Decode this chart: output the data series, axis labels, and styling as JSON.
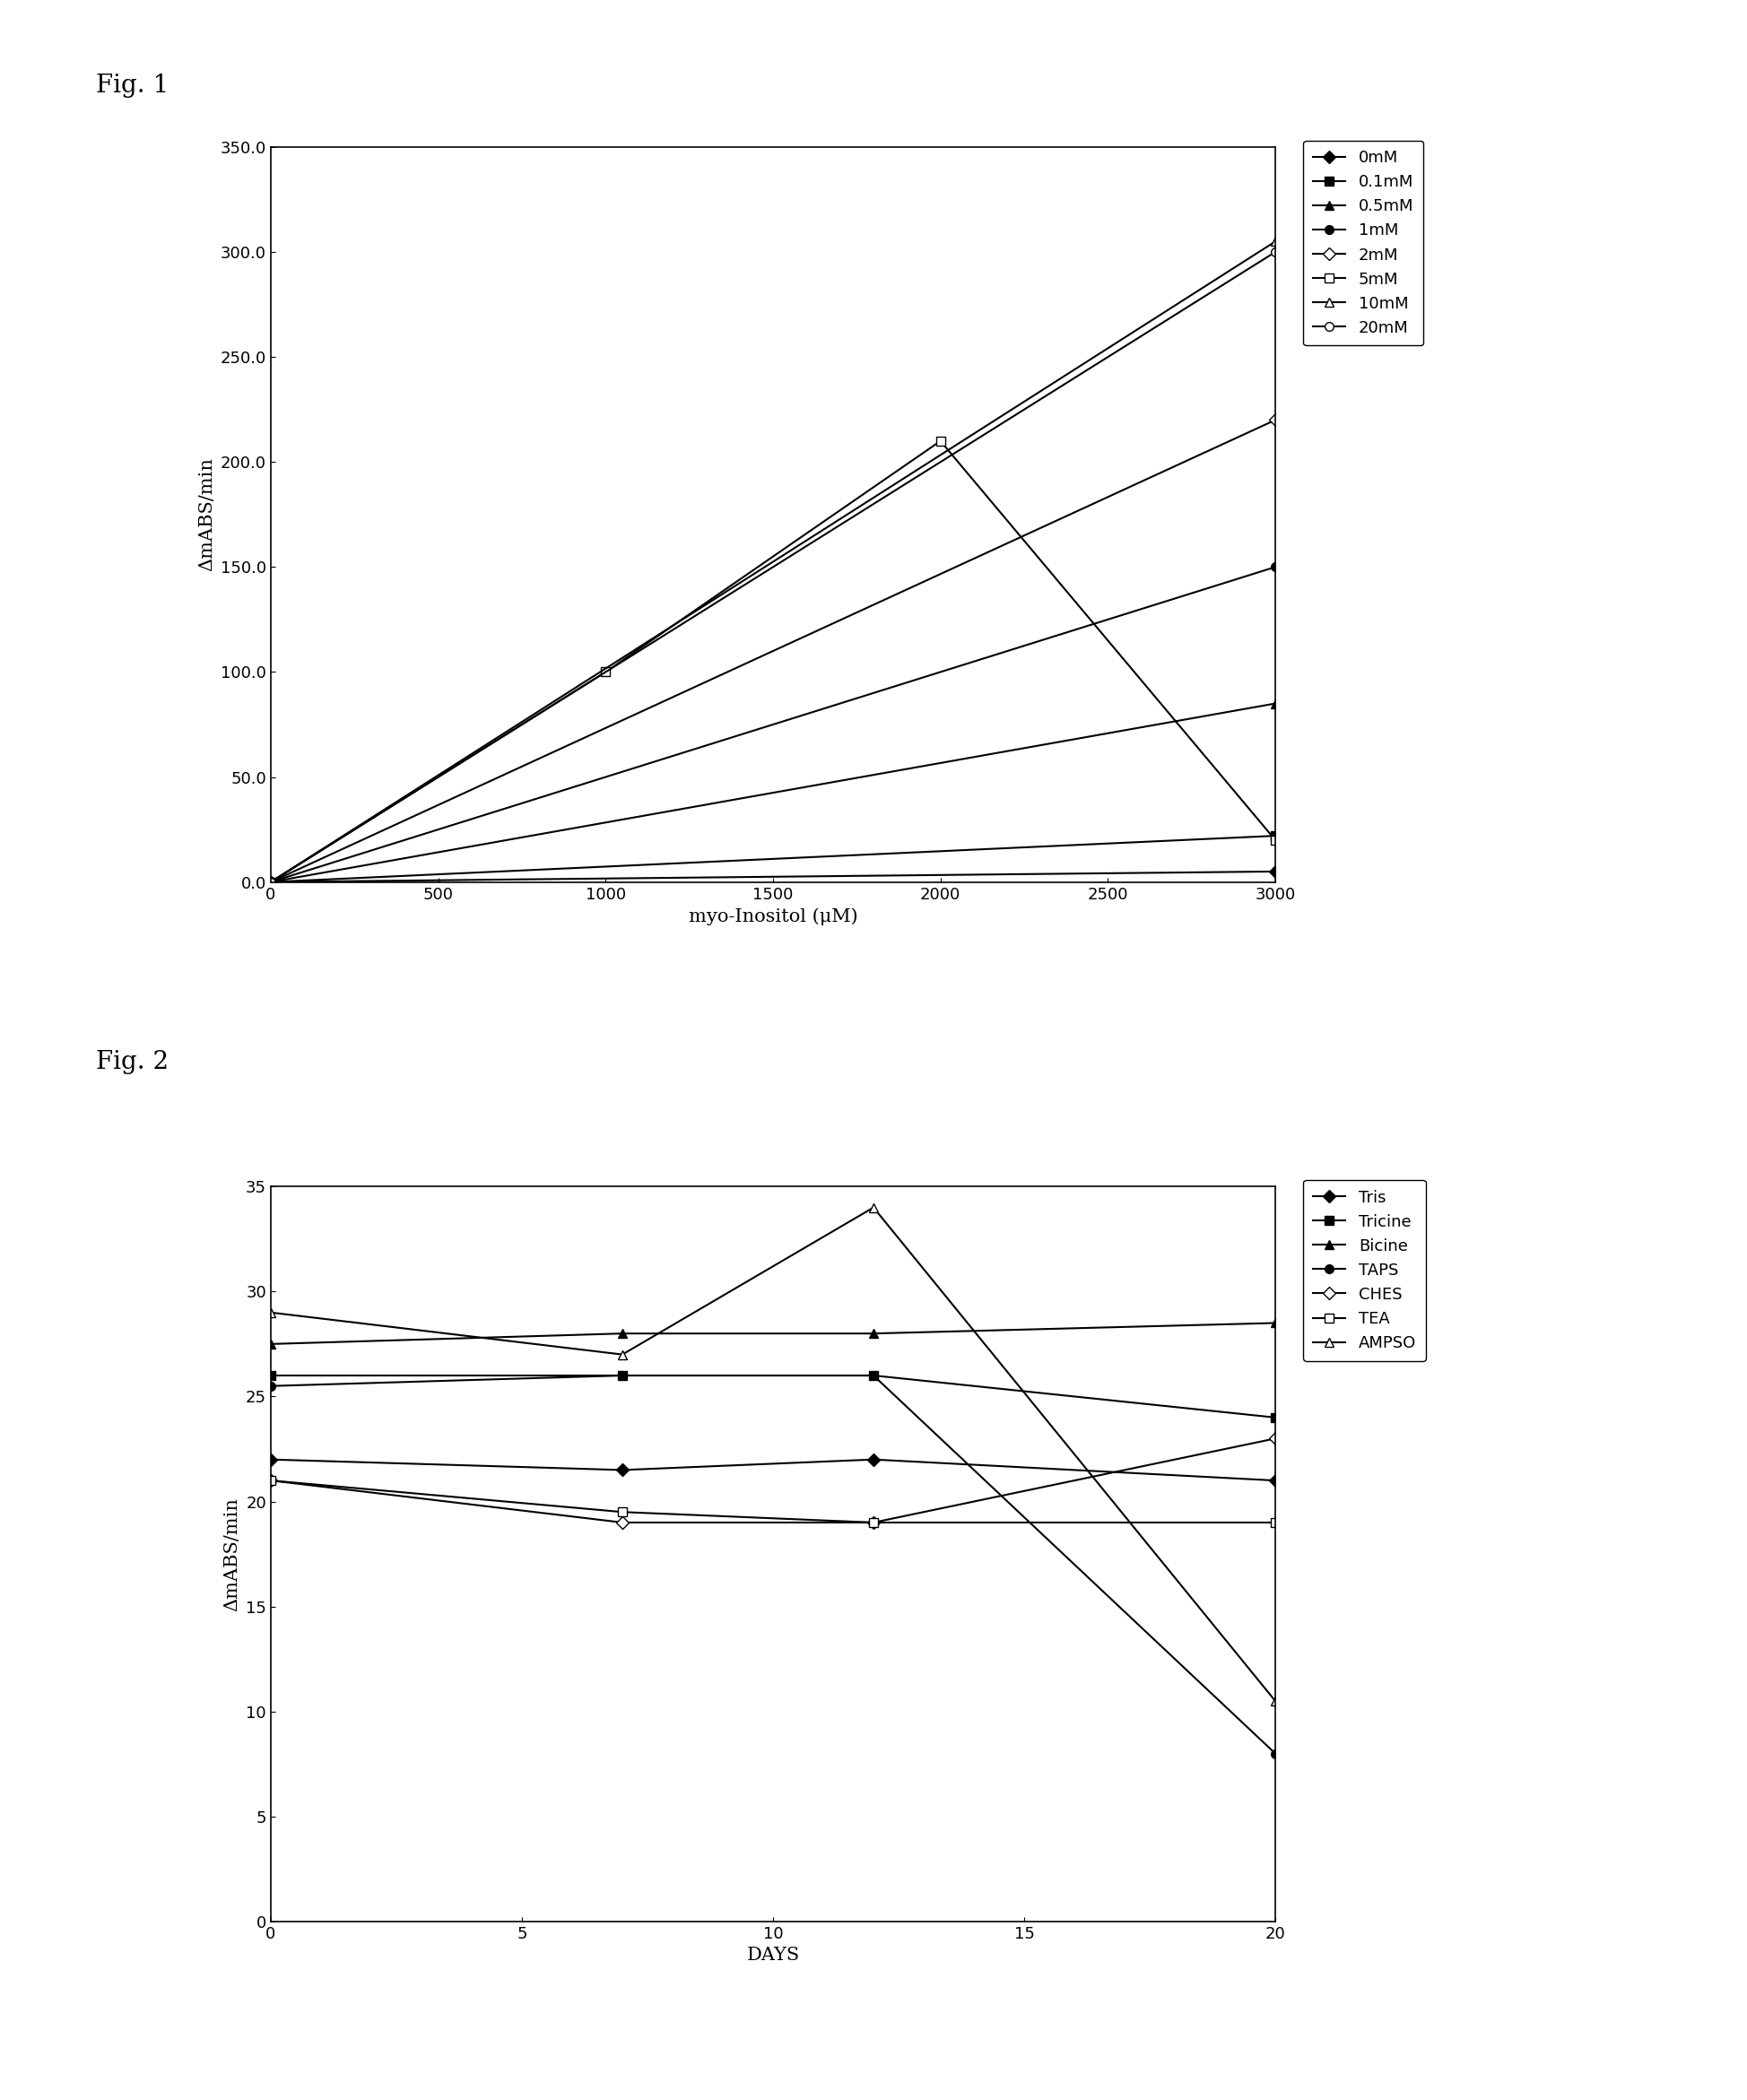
{
  "fig1": {
    "title": "Fig. 1",
    "xlabel": "myo-Inositol (μM)",
    "ylabel": "ΔmABS/min",
    "xlim": [
      0,
      3000
    ],
    "ylim": [
      0.0,
      350.0
    ],
    "yticks": [
      0.0,
      50.0,
      100.0,
      150.0,
      200.0,
      250.0,
      300.0,
      350.0
    ],
    "xticks": [
      0,
      500,
      1000,
      1500,
      2000,
      2500,
      3000
    ],
    "series": [
      {
        "label": "0mM",
        "x": [
          0,
          3000
        ],
        "y": [
          0,
          5
        ],
        "marker": "D",
        "filled": true
      },
      {
        "label": "0.1mM",
        "x": [
          0,
          3000
        ],
        "y": [
          0,
          22
        ],
        "marker": "s",
        "filled": true
      },
      {
        "label": "0.5mM",
        "x": [
          0,
          3000
        ],
        "y": [
          0,
          85
        ],
        "marker": "^",
        "filled": true
      },
      {
        "label": "1mM",
        "x": [
          0,
          3000
        ],
        "y": [
          0,
          150
        ],
        "marker": "o",
        "filled": true
      },
      {
        "label": "2mM",
        "x": [
          0,
          3000
        ],
        "y": [
          0,
          220
        ],
        "marker": "D",
        "filled": false
      },
      {
        "label": "5mM",
        "x": [
          0,
          1000,
          2000,
          3000
        ],
        "y": [
          0,
          100,
          210,
          20
        ],
        "marker": "s",
        "filled": false
      },
      {
        "label": "10mM",
        "x": [
          0,
          3000
        ],
        "y": [
          0,
          305
        ],
        "marker": "^",
        "filled": false
      },
      {
        "label": "20mM",
        "x": [
          0,
          3000
        ],
        "y": [
          0,
          300
        ],
        "marker": "o",
        "filled": false
      }
    ]
  },
  "fig2": {
    "title": "Fig. 2",
    "xlabel": "DAYS",
    "ylabel": "ΔmABS/min",
    "xlim": [
      0,
      20
    ],
    "ylim": [
      0,
      35
    ],
    "yticks": [
      0,
      5,
      10,
      15,
      20,
      25,
      30,
      35
    ],
    "xticks": [
      0,
      5,
      10,
      15,
      20
    ],
    "series": [
      {
        "label": "Tris",
        "x": [
          0,
          7,
          12,
          20
        ],
        "y": [
          22,
          21.5,
          22,
          21
        ],
        "marker": "D",
        "filled": true
      },
      {
        "label": "Tricine",
        "x": [
          0,
          7,
          12,
          20
        ],
        "y": [
          26,
          26,
          26,
          24
        ],
        "marker": "s",
        "filled": true
      },
      {
        "label": "Bicine",
        "x": [
          0,
          7,
          12,
          20
        ],
        "y": [
          27.5,
          28,
          28,
          28.5
        ],
        "marker": "^",
        "filled": true
      },
      {
        "label": "TAPS",
        "x": [
          0,
          7,
          12,
          20
        ],
        "y": [
          25.5,
          26,
          26,
          8
        ],
        "marker": "o",
        "filled": true
      },
      {
        "label": "CHES",
        "x": [
          0,
          7,
          12,
          20
        ],
        "y": [
          21,
          19,
          19,
          23
        ],
        "marker": "D",
        "filled": false
      },
      {
        "label": "TEA",
        "x": [
          0,
          7,
          12,
          20
        ],
        "y": [
          21,
          19.5,
          19,
          19
        ],
        "marker": "s",
        "filled": false
      },
      {
        "label": "AMPSO",
        "x": [
          0,
          7,
          12,
          20
        ],
        "y": [
          29,
          27,
          34,
          10.5
        ],
        "marker": "^",
        "filled": false
      }
    ]
  },
  "line_color": "#000000",
  "background_color": "#ffffff",
  "fig_label_fontsize": 20,
  "axis_label_fontsize": 15,
  "tick_fontsize": 13,
  "legend_fontsize": 13,
  "marker_size": 7,
  "line_width": 1.5
}
